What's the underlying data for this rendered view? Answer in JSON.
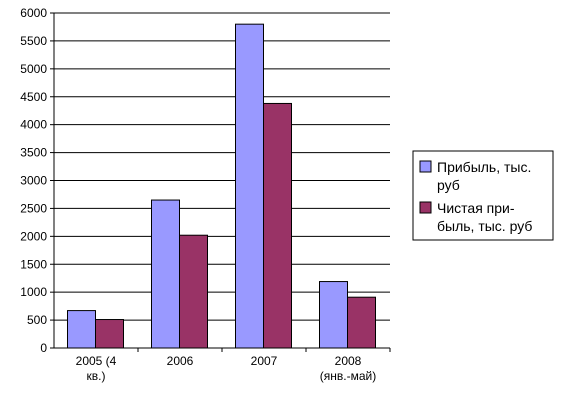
{
  "chart_data": {
    "type": "bar",
    "categories": [
      [
        "2005 (4",
        "кв.)"
      ],
      [
        "2006"
      ],
      [
        "2007"
      ],
      [
        "2008",
        "(янв.-май)"
      ]
    ],
    "series": [
      {
        "name_lines": [
          "Прибыль, тыс.",
          "руб"
        ],
        "color": "#9999ff",
        "values": [
          670,
          2650,
          5800,
          1190
        ]
      },
      {
        "name_lines": [
          "Чистая при-",
          "быль, тыс. руб"
        ],
        "color": "#993366",
        "values": [
          510,
          2020,
          4380,
          910
        ]
      }
    ],
    "ylim": [
      0,
      6000
    ],
    "ytick_step": 500,
    "grid": true,
    "legend_position": "right"
  }
}
